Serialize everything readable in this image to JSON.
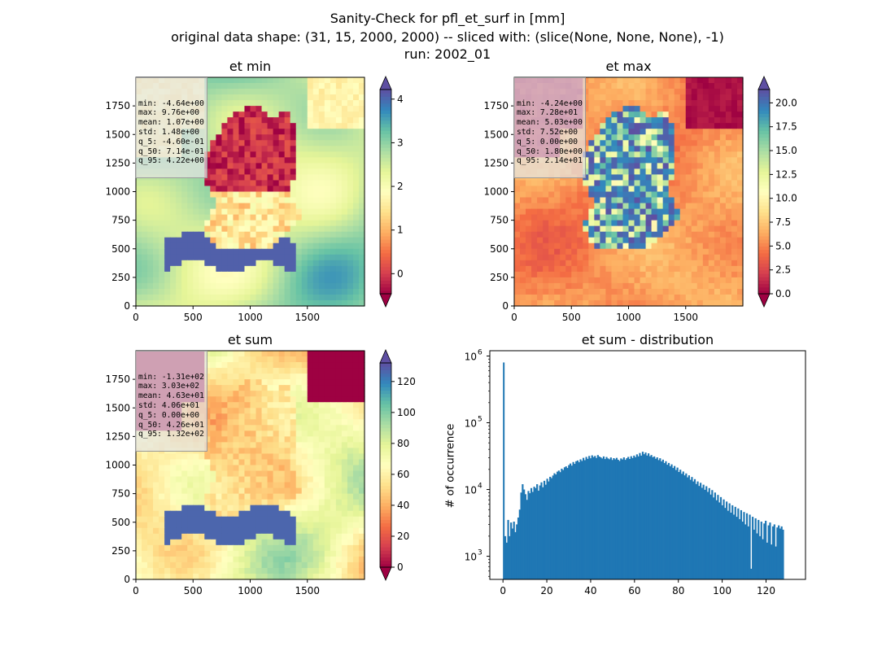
{
  "figure": {
    "title_line1": "Sanity-Check for pfl_et_surf in [mm]",
    "title_line2": "original data shape: (31, 15, 2000, 2000) -- sliced with: (slice(None, None, None), -1)",
    "title_line3": "run: 2002_01"
  },
  "colormap": [
    "#9e0142",
    "#d53e4f",
    "#f46d43",
    "#fdae61",
    "#fee08b",
    "#ffffbf",
    "#e6f598",
    "#abdda4",
    "#66c2a5",
    "#3288bd",
    "#5e4fa2"
  ],
  "panels": [
    {
      "title": "et min",
      "stats": [
        "min: -4.64e+00",
        "max: 9.76e+00",
        "mean: 1.07e+00",
        "std: 1.48e+00",
        "q_5: -4.60e-01",
        "q_50: 7.14e-01",
        "q_95: 4.22e+00"
      ],
      "x_ticks": [
        "0",
        "500",
        "1000",
        "1500"
      ],
      "y_ticks": [
        "0",
        "250",
        "500",
        "750",
        "1000",
        "1250",
        "1500",
        "1750"
      ],
      "colorbar": {
        "vmin": -0.46,
        "vmax": 4.22,
        "ticks": [
          0,
          1,
          2,
          3,
          4
        ],
        "tick_labels": [
          "0",
          "1",
          "2",
          "3",
          "4"
        ]
      }
    },
    {
      "title": "et max",
      "stats": [
        "min: -4.24e+00",
        "max: 7.28e+01",
        "mean: 5.03e+00",
        "std: 7.52e+00",
        "q_5: 0.00e+00",
        "q_50: 1.80e+00",
        "q_95: 2.14e+01"
      ],
      "x_ticks": [
        "0",
        "500",
        "1000",
        "1500"
      ],
      "y_ticks": [
        "0",
        "250",
        "500",
        "750",
        "1000",
        "1250",
        "1500",
        "1750"
      ],
      "colorbar": {
        "vmin": 0.0,
        "vmax": 21.4,
        "ticks": [
          0,
          2.5,
          5,
          7.5,
          10,
          12.5,
          15,
          17.5,
          20
        ],
        "tick_labels": [
          "0.0",
          "2.5",
          "5.0",
          "7.5",
          "10.0",
          "12.5",
          "15.0",
          "17.5",
          "20.0"
        ]
      }
    },
    {
      "title": "et sum",
      "stats": [
        "min: -1.31e+02",
        "max: 3.03e+02",
        "mean: 4.63e+01",
        "std: 4.06e+01",
        "q_5: 0.00e+00",
        "q_50: 4.26e+01",
        "q_95: 1.32e+02"
      ],
      "x_ticks": [
        "0",
        "500",
        "1000",
        "1500"
      ],
      "y_ticks": [
        "0",
        "250",
        "500",
        "750",
        "1000",
        "1250",
        "1500",
        "1750"
      ],
      "colorbar": {
        "vmin": 0.0,
        "vmax": 132.0,
        "ticks": [
          0,
          20,
          40,
          60,
          80,
          100,
          120
        ],
        "tick_labels": [
          "0",
          "20",
          "40",
          "60",
          "80",
          "100",
          "120"
        ]
      }
    }
  ],
  "chart_data": {
    "type": "bar",
    "title": "et sum - distribution",
    "xlabel": "",
    "ylabel": "# of occurrence",
    "yscale": "log",
    "xlim": [
      -6,
      138
    ],
    "ylim": [
      450,
      1200000
    ],
    "x_ticks": [
      0,
      20,
      40,
      60,
      80,
      100,
      120
    ],
    "y_ticks": [
      1000,
      10000,
      100000,
      1000000
    ],
    "y_tick_labels": [
      [
        "10",
        "3"
      ],
      [
        "10",
        "4"
      ],
      [
        "10",
        "5"
      ],
      [
        "10",
        "6"
      ]
    ],
    "bar_color": "#1f77b4",
    "bin_width": 0.66,
    "spike": {
      "x": 0.0,
      "value": 800000
    },
    "series": [
      {
        "x_start": 0.66,
        "values": [
          2000,
          1600,
          3500,
          2000,
          3200,
          2600,
          3300,
          2300,
          3000,
          3800,
          5000,
          9000,
          12000,
          10000,
          8500,
          7000,
          9500,
          8800,
          10500,
          9200,
          11000,
          10500,
          12000,
          9600,
          11500,
          12800,
          10800,
          13500,
          11800,
          14500,
          13200,
          15500,
          14800,
          16200,
          17500,
          16800,
          18500,
          19200,
          18200,
          20500,
          19600,
          21500,
          22200,
          21000,
          23200,
          24500,
          22800,
          25800,
          24200,
          26500,
          27200,
          25600,
          28300,
          26800,
          29800,
          27500,
          30800,
          28800,
          31800,
          29400,
          32500,
          30600,
          31800,
          29700,
          32800,
          31200,
          30300,
          29200,
          31300,
          28600,
          30700,
          29200,
          28400,
          30200,
          27700,
          29500,
          28300,
          29800,
          27900,
          26800,
          29200,
          28200,
          30300,
          27800,
          29400,
          30800,
          28700,
          31500,
          29600,
          32200,
          30500,
          33600,
          31400,
          35200,
          32200,
          36800,
          33800,
          35800,
          32300,
          34800,
          31500,
          32800,
          30400,
          31300,
          28900,
          30300,
          27600,
          29400,
          26400,
          28000,
          24900,
          26500,
          23500,
          25000,
          22300,
          23800,
          21000,
          22500,
          19600,
          21300,
          18300,
          19800,
          17200,
          18600,
          16300,
          17400,
          15200,
          16300,
          14000,
          15400,
          13200,
          14300,
          12100,
          13200,
          11300,
          12600,
          10600,
          11800,
          9900,
          11200,
          9200,
          10500,
          8400,
          9800,
          7600,
          9000,
          6900,
          8300,
          6400,
          7700,
          5800,
          7100,
          5300,
          6600,
          4800,
          6200,
          4500,
          5800,
          4200,
          5500,
          3900,
          5200,
          3600,
          4900,
          3300,
          4600,
          3000,
          4400,
          2800,
          4200,
          650,
          3900,
          2500,
          3700,
          2200,
          3500,
          2000,
          3300,
          1800,
          3100,
          3400,
          1600,
          2900,
          3200,
          1500,
          2800,
          3000,
          1400,
          2700,
          2900,
          2600,
          2800,
          2500
        ]
      }
    ]
  }
}
